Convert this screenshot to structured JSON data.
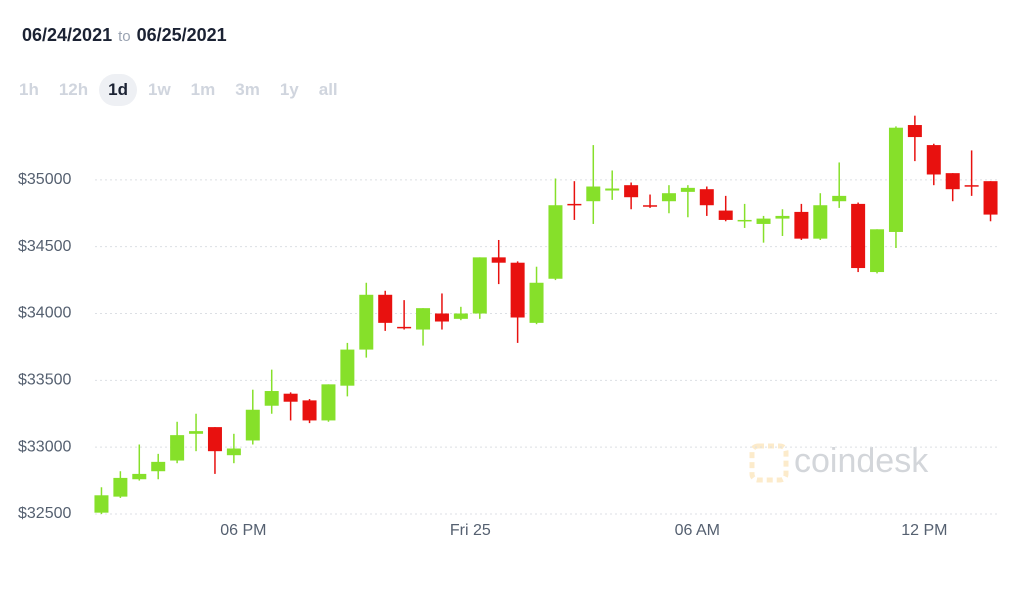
{
  "header": {
    "from": "06/24/2021",
    "to_word": "to",
    "to": "06/25/2021"
  },
  "range_buttons": [
    "1h",
    "12h",
    "1d",
    "1w",
    "1m",
    "3m",
    "1y",
    "all"
  ],
  "selected_range": 2,
  "watermark": "coindesk",
  "chart_data": {
    "type": "candlestick",
    "up_color": "#86e02a",
    "down_color": "#e8110f",
    "grid": true,
    "xlim": [
      14,
      38
    ],
    "xticks": [
      {
        "value": 18,
        "label": "06 PM"
      },
      {
        "value": 24,
        "label": "Fri 25"
      },
      {
        "value": 30,
        "label": "06 AM"
      },
      {
        "value": 36,
        "label": "12 PM"
      }
    ],
    "ylim": [
      32500,
      35500
    ],
    "yticks": [
      {
        "value": 32500,
        "label": "$32500"
      },
      {
        "value": 33000,
        "label": "$33000"
      },
      {
        "value": 33500,
        "label": "$33500"
      },
      {
        "value": 34000,
        "label": "$34000"
      },
      {
        "value": 34500,
        "label": "$34500"
      },
      {
        "value": 35000,
        "label": "$35000"
      }
    ],
    "x": [
      14.25,
      14.75,
      15.25,
      15.75,
      16.25,
      16.75,
      17.25,
      17.75,
      18.25,
      18.75,
      19.25,
      19.75,
      20.25,
      20.75,
      21.25,
      21.75,
      22.25,
      22.75,
      23.25,
      23.75,
      24.25,
      24.75,
      25.25,
      25.75,
      26.25,
      26.75,
      27.25,
      27.75,
      28.25,
      28.75,
      29.25,
      29.75,
      30.25,
      30.75,
      31.25,
      31.75,
      32.25,
      32.75,
      33.25,
      33.75,
      34.25,
      34.75,
      35.25,
      35.75,
      36.25,
      36.75,
      37.25,
      37.75
    ],
    "open": [
      32510,
      32630,
      32760,
      32820,
      32900,
      33100,
      33150,
      32940,
      33050,
      33310,
      33400,
      33350,
      33200,
      33460,
      33730,
      34140,
      33900,
      33880,
      34000,
      33960,
      34000,
      34420,
      34380,
      33930,
      34260,
      34820,
      34840,
      34920,
      34960,
      34810,
      34840,
      34910,
      34930,
      34770,
      34700,
      34670,
      34710,
      34760,
      34560,
      34840,
      34820,
      34310,
      34610,
      35410,
      35260,
      35050,
      34960,
      34990
    ],
    "high": [
      32700,
      32820,
      33020,
      32950,
      33190,
      33250,
      33150,
      33100,
      33430,
      33580,
      33410,
      33360,
      33470,
      33780,
      34230,
      34170,
      34100,
      34040,
      34150,
      34050,
      34420,
      34550,
      34390,
      34350,
      35010,
      34990,
      35260,
      35070,
      34980,
      34890,
      34960,
      34960,
      34950,
      34880,
      34820,
      34730,
      34780,
      34820,
      34900,
      35130,
      34830,
      34630,
      35400,
      35480,
      35270,
      35050,
      35220,
      34990
    ],
    "low": [
      32500,
      32620,
      32750,
      32760,
      32880,
      32970,
      32800,
      32880,
      33020,
      33250,
      33200,
      33180,
      33190,
      33380,
      33670,
      33870,
      33880,
      33760,
      33880,
      33950,
      33960,
      34220,
      33780,
      33920,
      34250,
      34700,
      34670,
      34850,
      34780,
      34790,
      34750,
      34720,
      34730,
      34690,
      34640,
      34530,
      34580,
      34550,
      34550,
      34790,
      34310,
      34300,
      34490,
      35140,
      34960,
      34840,
      34880,
      34690
    ],
    "close": [
      32640,
      32770,
      32800,
      32890,
      33090,
      33120,
      32970,
      32990,
      33280,
      33420,
      33340,
      33200,
      33470,
      33730,
      34140,
      33930,
      33890,
      34040,
      33940,
      34000,
      34420,
      34380,
      33970,
      34230,
      34810,
      34810,
      34950,
      34935,
      34870,
      34800,
      34900,
      34940,
      34810,
      34700,
      34700,
      34710,
      34730,
      34560,
      34810,
      34880,
      34340,
      34630,
      35390,
      35320,
      35040,
      34930,
      34950,
      34740
    ]
  }
}
